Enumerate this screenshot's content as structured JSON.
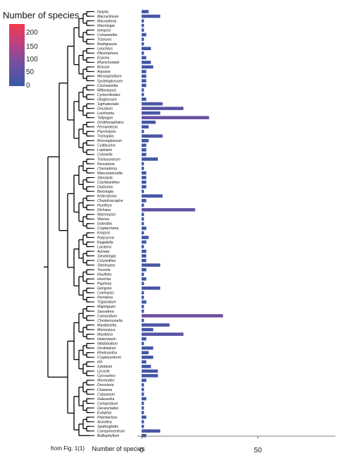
{
  "legend": {
    "title": "Number of species",
    "ticks": [
      "200",
      "150",
      "100",
      "50",
      "0"
    ],
    "colors": {
      "low": "#3a58a8",
      "mid": "#7a4f9e",
      "high": "#f03a4f"
    }
  },
  "note": "from Fig. 1(1)",
  "chart_data": {
    "type": "bar",
    "orientation": "horizontal",
    "xlabel": "Number of species",
    "xlim": [
      0,
      85
    ],
    "xticks": [
      0,
      50
    ],
    "grid": false,
    "legend_placement": "top-left",
    "categories": [
      "Notylia",
      "Macroclinium",
      "Macradenia",
      "Warmingia",
      "Ionopsis",
      "Comparettia",
      "Trizeuxis",
      "Rodriguezia",
      "Leochilus",
      "Plectrophora",
      "Erycina",
      "Rhynchostele",
      "Brassia",
      "Aspasia",
      "Mesospinidium",
      "Systeloglossum",
      "Cischweinfia",
      "Miltoniopsis",
      "Cyrtochiloides",
      "Otoglossum",
      "Sigmatostalix",
      "Oncidium",
      "Lockhartia",
      "Telipogon",
      "Ornithocephalus",
      "Fernandezia",
      "Psychopsis",
      "Trichopilia",
      "Rossioglossum",
      "Cuitlauzina",
      "Lophiaris",
      "Cohniella",
      "Trichocentrum",
      "Pescatoria",
      "Cheiradenia",
      "Warczewiczella",
      "Stenotyla",
      "Cochleanthes",
      "Dodsonia",
      "Benzingia",
      "Kefersteinia",
      "Chondroscaphe",
      "Huntleya",
      "Dichaea",
      "Warreopsis",
      "Warrea",
      "Galeottia",
      "Cryptarrhena",
      "Eriopsis",
      "Polycycnis",
      "Kegeliella",
      "Lacaena",
      "Acineta",
      "Sievekingia",
      "Coryanthes",
      "Stanhopea",
      "Trevoria",
      "Houlletia",
      "Horichia",
      "Paphinia",
      "Gongora",
      "Coeliopsis",
      "Peristeria",
      "Trigonidium",
      "Mapinguari",
      "Sauvetrea",
      "Camaridium",
      "Christensonella",
      "Maxillariella",
      "Mormolyca",
      "Maxillaria",
      "Heterotaxis",
      "Nitidobulbon",
      "Ornithidium",
      "Rhetinantha",
      "Cryptocentrum",
      "Inti",
      "Xylobium",
      "Lycaste",
      "Cycnoches",
      "Mormodes",
      "Dressleria",
      "Clowesia",
      "Catasetum",
      "Galeandra",
      "Cyrtopodium",
      "Oeceoclades",
      "Eulophia",
      "Polystachya",
      "Arundina",
      "Spathoglottis",
      "Campylocentrum",
      "Bulbophyllum"
    ],
    "values": [
      3,
      8,
      1,
      1,
      1,
      2,
      1,
      1,
      4,
      1,
      2,
      4,
      5,
      2,
      2,
      2,
      2,
      1,
      1,
      2,
      9,
      18,
      8,
      29,
      6,
      3,
      1,
      9,
      3,
      2,
      2,
      2,
      7,
      1,
      1,
      2,
      2,
      2,
      2,
      1,
      9,
      2,
      1,
      23,
      1,
      1,
      1,
      2,
      1,
      3,
      2,
      1,
      2,
      2,
      2,
      8,
      2,
      1,
      2,
      1,
      8,
      1,
      1,
      2,
      1,
      1,
      35,
      1,
      12,
      5,
      18,
      2,
      1,
      5,
      3,
      5,
      2,
      4,
      7,
      7,
      2,
      1,
      1,
      1,
      2,
      1,
      1,
      1,
      2,
      1,
      1,
      8,
      2
    ]
  }
}
